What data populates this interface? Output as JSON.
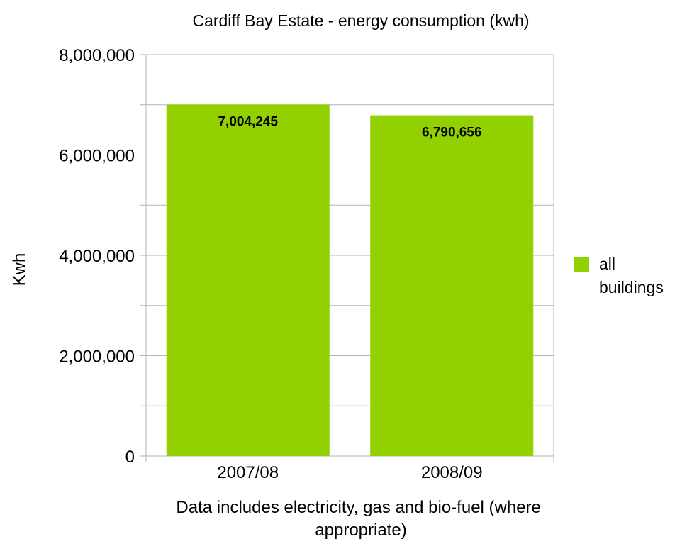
{
  "chart_data": {
    "type": "bar",
    "title": "Cardiff Bay Estate - energy consumption (kwh)",
    "ylabel": "Kwh",
    "xlabel_lines": [
      "Data includes electricity, gas and bio-fuel (where",
      "appropriate)"
    ],
    "categories": [
      "2007/08",
      "2008/09"
    ],
    "series": [
      {
        "name": "all buildings",
        "legend_lines": [
          "all",
          "buildings"
        ],
        "values": [
          7004245,
          6790656
        ],
        "labels": [
          "7,004,245",
          "6,790,656"
        ],
        "color": "#92d000"
      }
    ],
    "ylim": [
      0,
      8000000
    ],
    "yticks": [
      0,
      2000000,
      4000000,
      6000000,
      8000000
    ],
    "ytick_labels": [
      "0",
      "2,000,000",
      "4,000,000",
      "6,000,000",
      "8,000,000"
    ],
    "minor_step": 1000000,
    "grid": true,
    "legend_position": "right",
    "grid_color": "#b3b3b3"
  }
}
